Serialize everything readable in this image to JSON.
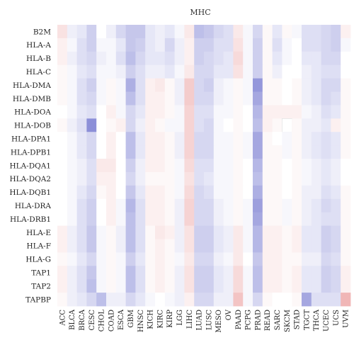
{
  "chart_data": {
    "type": "heatmap",
    "title": "MHC",
    "xlabel": "",
    "ylabel": "",
    "rows": [
      "B2M",
      "HLA-A",
      "HLA-B",
      "HLA-C",
      "HLA-DMA",
      "HLA-DMB",
      "HLA-DOA",
      "HLA-DOB",
      "HLA-DPA1",
      "HLA-DPB1",
      "HLA-DQA1",
      "HLA-DQA2",
      "HLA-DQB1",
      "HLA-DRA",
      "HLA-DRB1",
      "HLA-E",
      "HLA-F",
      "HLA-G",
      "TAP1",
      "TAP2",
      "TAPBP"
    ],
    "columns": [
      "ACC",
      "BLCA",
      "BRCA",
      "CESC",
      "CHOL",
      "COAD",
      "ESCA",
      "GBM",
      "HNSC",
      "KICH",
      "KIRC",
      "KIRP",
      "LGG",
      "LIHC",
      "LUAD",
      "LUSC",
      "MESO",
      "OV",
      "PAAD",
      "PCPG",
      "PRAD",
      "READ",
      "SARC",
      "SKCM",
      "STAD",
      "TGCT",
      "THCA",
      "UCEC",
      "UCS",
      "UVM"
    ],
    "value_range": [
      -1,
      1
    ],
    "color_scale": {
      "negative": "#5b5fc7",
      "neutral": "#ffffff",
      "positive": "#e06c6c"
    },
    "values": [
      [
        0.2,
        -0.1,
        -0.15,
        -0.3,
        0.0,
        -0.1,
        -0.25,
        -0.35,
        -0.35,
        -0.15,
        -0.1,
        -0.15,
        -0.05,
        0.15,
        -0.4,
        -0.35,
        -0.25,
        -0.2,
        0.15,
        -0.05,
        -0.25,
        0.05,
        -0.15,
        0.05,
        -0.05,
        -0.2,
        -0.2,
        -0.25,
        -0.3,
        0.1
      ],
      [
        0.1,
        -0.05,
        -0.2,
        -0.3,
        -0.05,
        -0.05,
        -0.15,
        -0.35,
        -0.3,
        -0.15,
        -0.1,
        -0.25,
        -0.1,
        0.1,
        -0.3,
        -0.3,
        -0.2,
        -0.2,
        0.2,
        -0.05,
        -0.3,
        0.05,
        -0.2,
        -0.05,
        0.0,
        -0.2,
        -0.2,
        -0.25,
        -0.3,
        -0.05
      ],
      [
        0.1,
        -0.1,
        -0.2,
        -0.25,
        -0.1,
        -0.05,
        -0.2,
        -0.4,
        -0.25,
        -0.15,
        -0.15,
        -0.2,
        -0.1,
        0.1,
        -0.3,
        -0.25,
        -0.2,
        -0.15,
        0.25,
        -0.05,
        -0.3,
        0.05,
        -0.15,
        -0.05,
        0.0,
        -0.15,
        -0.15,
        -0.25,
        -0.25,
        0.0
      ],
      [
        0.05,
        -0.05,
        -0.15,
        -0.2,
        -0.05,
        -0.05,
        -0.1,
        -0.3,
        -0.2,
        -0.1,
        -0.1,
        -0.15,
        -0.05,
        0.15,
        -0.25,
        -0.25,
        -0.15,
        -0.15,
        0.2,
        -0.05,
        -0.3,
        0.05,
        -0.1,
        0.0,
        0.0,
        -0.1,
        -0.15,
        -0.2,
        -0.2,
        0.0
      ],
      [
        0.05,
        -0.05,
        -0.2,
        -0.3,
        -0.05,
        0.05,
        -0.05,
        -0.5,
        -0.2,
        0.1,
        0.15,
        0.05,
        -0.1,
        0.35,
        -0.25,
        -0.3,
        -0.1,
        -0.05,
        0.05,
        -0.05,
        -0.65,
        0.05,
        0.05,
        0.0,
        0.05,
        -0.1,
        -0.15,
        -0.25,
        -0.25,
        0.05
      ],
      [
        0.05,
        -0.05,
        -0.2,
        -0.25,
        -0.05,
        0.05,
        -0.05,
        -0.4,
        -0.2,
        0.1,
        0.1,
        0.05,
        -0.1,
        0.35,
        -0.25,
        -0.25,
        -0.1,
        -0.05,
        0.05,
        -0.05,
        -0.55,
        0.05,
        0.05,
        0.0,
        0.05,
        -0.1,
        -0.15,
        -0.25,
        -0.2,
        0.05
      ],
      [
        0.0,
        -0.05,
        -0.15,
        -0.2,
        0.0,
        0.1,
        -0.05,
        -0.25,
        -0.15,
        0.1,
        0.1,
        0.05,
        -0.05,
        0.3,
        -0.2,
        -0.2,
        -0.05,
        -0.05,
        0.05,
        0.0,
        -0.45,
        0.1,
        0.1,
        0.1,
        0.1,
        -0.05,
        -0.1,
        -0.2,
        -0.15,
        0.05
      ],
      [
        0.05,
        -0.1,
        -0.2,
        -0.7,
        0.0,
        0.05,
        0.1,
        -0.25,
        -0.1,
        0.1,
        0.05,
        -0.05,
        -0.05,
        0.3,
        -0.2,
        -0.25,
        -0.05,
        0.0,
        0.05,
        0.0,
        -0.4,
        0.1,
        0.05,
        0.0,
        0.05,
        -0.1,
        -0.1,
        -0.15,
        0.1,
        0.05
      ],
      [
        0.0,
        -0.05,
        -0.15,
        -0.25,
        0.0,
        0.1,
        0.0,
        -0.4,
        -0.15,
        0.1,
        0.1,
        0.05,
        -0.1,
        0.3,
        -0.25,
        -0.25,
        -0.05,
        -0.05,
        0.05,
        -0.05,
        -0.55,
        0.05,
        0.0,
        -0.05,
        0.05,
        -0.1,
        -0.15,
        -0.2,
        -0.15,
        0.05
      ],
      [
        0.0,
        -0.05,
        -0.15,
        -0.25,
        0.0,
        0.1,
        0.0,
        -0.4,
        -0.15,
        0.1,
        0.1,
        0.05,
        -0.1,
        0.3,
        -0.25,
        -0.25,
        -0.05,
        -0.05,
        0.05,
        -0.05,
        -0.55,
        0.05,
        0.05,
        -0.05,
        0.05,
        -0.1,
        -0.15,
        -0.2,
        -0.15,
        0.05
      ],
      [
        0.0,
        -0.05,
        -0.1,
        -0.2,
        0.15,
        0.15,
        0.0,
        -0.3,
        -0.1,
        0.1,
        0.1,
        0.05,
        -0.05,
        0.25,
        -0.2,
        -0.2,
        -0.05,
        -0.05,
        0.05,
        0.0,
        -0.45,
        0.05,
        0.05,
        0.0,
        0.05,
        -0.05,
        -0.1,
        -0.15,
        -0.1,
        0.0
      ],
      [
        0.0,
        -0.05,
        -0.1,
        -0.2,
        0.1,
        0.1,
        0.0,
        -0.25,
        -0.1,
        0.05,
        0.05,
        0.05,
        -0.05,
        0.2,
        -0.2,
        -0.15,
        -0.05,
        -0.05,
        0.05,
        0.0,
        -0.4,
        0.05,
        0.05,
        0.0,
        0.05,
        -0.05,
        -0.1,
        -0.15,
        -0.1,
        0.0
      ],
      [
        0.0,
        -0.05,
        -0.15,
        -0.25,
        0.05,
        0.1,
        0.0,
        -0.35,
        -0.15,
        0.1,
        0.1,
        0.05,
        -0.05,
        0.25,
        -0.25,
        -0.2,
        -0.05,
        -0.05,
        0.05,
        0.0,
        -0.5,
        0.05,
        0.05,
        0.0,
        0.05,
        -0.1,
        -0.1,
        -0.2,
        -0.15,
        0.05
      ],
      [
        0.0,
        -0.05,
        -0.2,
        -0.3,
        0.0,
        0.1,
        -0.05,
        -0.45,
        -0.2,
        0.1,
        0.1,
        0.05,
        -0.1,
        0.3,
        -0.25,
        -0.25,
        -0.1,
        -0.05,
        0.05,
        -0.05,
        -0.6,
        0.05,
        0.05,
        -0.05,
        0.05,
        -0.1,
        -0.15,
        -0.25,
        -0.2,
        0.05
      ],
      [
        0.0,
        -0.05,
        -0.2,
        -0.3,
        0.0,
        0.1,
        -0.05,
        -0.4,
        -0.2,
        0.1,
        0.1,
        0.05,
        -0.1,
        0.3,
        -0.25,
        -0.25,
        -0.1,
        -0.05,
        0.05,
        -0.05,
        -0.55,
        0.05,
        0.05,
        -0.05,
        0.05,
        -0.1,
        -0.15,
        -0.2,
        -0.2,
        0.05
      ],
      [
        0.1,
        -0.1,
        -0.2,
        -0.35,
        -0.05,
        0.05,
        -0.1,
        -0.4,
        -0.2,
        0.05,
        0.15,
        0.1,
        -0.1,
        0.2,
        -0.3,
        -0.3,
        -0.15,
        -0.1,
        0.15,
        -0.05,
        -0.45,
        0.1,
        0.1,
        0.05,
        0.1,
        -0.15,
        -0.15,
        -0.3,
        -0.25,
        0.05
      ],
      [
        0.1,
        -0.1,
        -0.2,
        -0.35,
        -0.05,
        0.05,
        -0.1,
        -0.4,
        -0.2,
        0.05,
        0.1,
        0.05,
        -0.1,
        0.2,
        -0.3,
        -0.3,
        -0.15,
        -0.1,
        0.15,
        -0.05,
        -0.45,
        0.1,
        0.1,
        0.05,
        0.1,
        -0.15,
        -0.15,
        -0.3,
        -0.25,
        0.05
      ],
      [
        0.05,
        -0.05,
        -0.15,
        -0.25,
        -0.05,
        0.05,
        -0.05,
        -0.3,
        -0.15,
        0.05,
        0.1,
        0.05,
        -0.05,
        0.15,
        -0.25,
        -0.25,
        -0.1,
        -0.05,
        0.15,
        0.0,
        -0.35,
        0.1,
        0.1,
        0.05,
        0.05,
        -0.1,
        -0.1,
        -0.25,
        -0.2,
        0.05
      ],
      [
        0.1,
        -0.1,
        -0.2,
        -0.35,
        -0.05,
        0.05,
        -0.05,
        -0.4,
        -0.2,
        0.05,
        0.1,
        0.05,
        -0.1,
        0.2,
        -0.3,
        -0.3,
        -0.15,
        -0.1,
        0.25,
        -0.05,
        -0.4,
        0.1,
        0.1,
        0.05,
        0.1,
        -0.15,
        -0.15,
        -0.3,
        -0.25,
        0.1
      ],
      [
        0.1,
        -0.1,
        -0.2,
        -0.4,
        -0.05,
        0.05,
        -0.05,
        -0.4,
        -0.2,
        0.05,
        0.1,
        0.05,
        -0.1,
        0.2,
        -0.3,
        -0.3,
        -0.15,
        -0.1,
        0.25,
        -0.05,
        -0.4,
        0.1,
        0.1,
        0.05,
        0.1,
        -0.15,
        -0.15,
        -0.3,
        -0.25,
        0.1
      ],
      [
        0.05,
        -0.1,
        -0.15,
        -0.25,
        -0.4,
        -0.1,
        -0.1,
        -0.25,
        -0.15,
        -0.05,
        0.0,
        -0.05,
        -0.1,
        0.1,
        -0.25,
        -0.25,
        -0.1,
        -0.1,
        0.4,
        -0.05,
        -0.25,
        0.05,
        0.0,
        0.0,
        0.05,
        -0.55,
        -0.2,
        -0.2,
        -0.2,
        0.5
      ]
    ],
    "missing_cells": [
      [
        7,
        23
      ]
    ]
  }
}
